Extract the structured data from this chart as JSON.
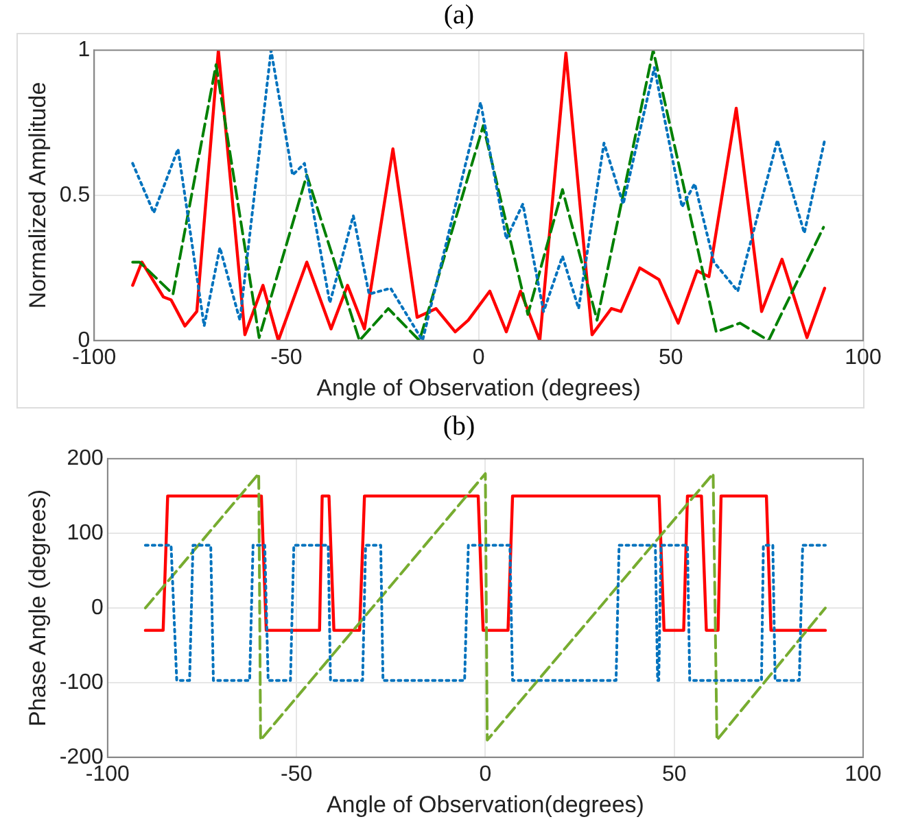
{
  "chart_data": [
    {
      "type": "line",
      "title": "(a)",
      "xlabel": "Angle of Observation (degrees)",
      "ylabel": "Normalized Amplitude",
      "xlim": [
        -100,
        100
      ],
      "xticks": [
        -100,
        -50,
        0,
        50,
        100
      ],
      "ylim": [
        0,
        1
      ],
      "yticks": [
        0,
        0.5,
        1
      ],
      "grid": true,
      "marker": "none",
      "series": [
        {
          "color": "#0072bd",
          "line_style": "dotted",
          "x": [
            -90,
            -84.5,
            -78.2,
            -71.4,
            -67.3,
            -62.1,
            -54,
            -48.4,
            -45.3,
            -38.7,
            -32.6,
            -28.5,
            -22.9,
            -14.6,
            0.5,
            7.2,
            11.5,
            16.9,
            21.8,
            26,
            32.6,
            37.6,
            45.7,
            52.9,
            56.2,
            61.2,
            67.4,
            77.7,
            84.7,
            90
          ],
          "values": [
            0.61,
            0.44,
            0.66,
            0.05,
            0.32,
            0.07,
            1.0,
            0.57,
            0.61,
            0.13,
            0.43,
            0.16,
            0.18,
            0.0,
            0.82,
            0.35,
            0.47,
            0.1,
            0.29,
            0.11,
            0.68,
            0.47,
            0.94,
            0.46,
            0.54,
            0.27,
            0.17,
            0.69,
            0.37,
            0.69
          ]
        },
        {
          "color": "#008000",
          "line_style": "dashed",
          "x": [
            -90,
            -88.2,
            -79.5,
            -68.3,
            -57.1,
            -44.7,
            -31,
            -23.5,
            -15.4,
            1.2,
            12.8,
            21.8,
            30.8,
            45.4,
            61.8,
            68,
            75.4,
            89.7
          ],
          "values": [
            0.27,
            0.27,
            0.16,
            0.95,
            0.01,
            0.57,
            0.0,
            0.11,
            0.0,
            0.74,
            0.09,
            0.52,
            0.07,
            1.0,
            0.03,
            0.06,
            0.0,
            0.39
          ]
        },
        {
          "color": "#ff0000",
          "line_style": "solid",
          "x": [
            -90,
            -87.6,
            -82,
            -80,
            -76.4,
            -73.3,
            -67.7,
            -60.8,
            -56.1,
            -52.1,
            -44.7,
            -38.4,
            -34.1,
            -29.7,
            -22.3,
            -16,
            -11.1,
            -6.1,
            -2.7,
            2.9,
            7.2,
            10.9,
            15.9,
            22.7,
            29.5,
            34.5,
            37,
            41.9,
            46.9,
            51.9,
            56.8,
            59.9,
            67,
            73.6,
            78.9,
            85.4,
            90
          ],
          "values": [
            0.19,
            0.27,
            0.15,
            0.14,
            0.05,
            0.1,
            1.0,
            0.02,
            0.19,
            0.0,
            0.27,
            0.04,
            0.19,
            0.04,
            0.66,
            0.08,
            0.11,
            0.03,
            0.07,
            0.17,
            0.03,
            0.17,
            0.0,
            0.99,
            0.02,
            0.11,
            0.1,
            0.25,
            0.21,
            0.06,
            0.24,
            0.22,
            0.8,
            0.1,
            0.28,
            0.01,
            0.18
          ]
        }
      ]
    },
    {
      "type": "line",
      "title": "(b)",
      "xlabel": "Angle of Observation(degrees)",
      "ylabel": "Phase Angle (degrees)",
      "xlim": [
        -100,
        100
      ],
      "xticks": [
        -100,
        -50,
        0,
        50,
        100
      ],
      "ylim": [
        -200,
        200
      ],
      "yticks": [
        -200,
        -100,
        0,
        100,
        200
      ],
      "grid": true,
      "marker": "none",
      "series": [
        {
          "color": "#0072bd",
          "line_style": "dotted",
          "x": [
            -90,
            -83.2,
            -81.7,
            -78.3,
            -77.4,
            -72.7,
            -72,
            -62.4,
            -61.5,
            -58.4,
            -57.5,
            -51.6,
            -50.7,
            -41.6,
            -41,
            -32.5,
            -31.7,
            -27.7,
            -27.1,
            -5.5,
            -4.5,
            6.5,
            7.2,
            34.6,
            35.4,
            45,
            45.6,
            45.9,
            46.5,
            53.5,
            54.1,
            73.1,
            73.6,
            76.1,
            76.7,
            83.1,
            84,
            90
          ],
          "values": [
            84,
            84,
            -97,
            -97,
            84,
            84,
            -97,
            -97,
            84,
            84,
            -97,
            -97,
            84,
            84,
            -97,
            -97,
            84,
            84,
            -97,
            -97,
            84,
            84,
            -97,
            -97,
            84,
            84,
            -97,
            -97,
            84,
            84,
            -97,
            -97,
            84,
            84,
            -97,
            -97,
            84,
            84
          ]
        },
        {
          "color": "#77ac30",
          "line_style": "dashed",
          "x": [
            -90,
            -60,
            -59.5,
            0,
            0.5,
            60.3,
            61.3,
            90
          ],
          "values": [
            0,
            180,
            -177,
            180,
            -177,
            180,
            -177,
            0
          ]
        },
        {
          "color": "#ff0000",
          "line_style": "solid",
          "x": [
            -90,
            -85.3,
            -84.1,
            -59.3,
            -58,
            -43.9,
            -43.2,
            -41.4,
            -40.1,
            -33.3,
            -32,
            -1.9,
            -0.6,
            6,
            7.2,
            46,
            47.3,
            52.5,
            53.5,
            57.2,
            58.5,
            61.6,
            62.4,
            74.4,
            75.6,
            90
          ],
          "values": [
            -30,
            -30,
            150,
            150,
            -30,
            -30,
            150,
            150,
            -30,
            -30,
            150,
            150,
            -30,
            -30,
            150,
            150,
            -30,
            -30,
            150,
            150,
            -30,
            -30,
            150,
            150,
            -30,
            -30
          ]
        }
      ]
    }
  ]
}
